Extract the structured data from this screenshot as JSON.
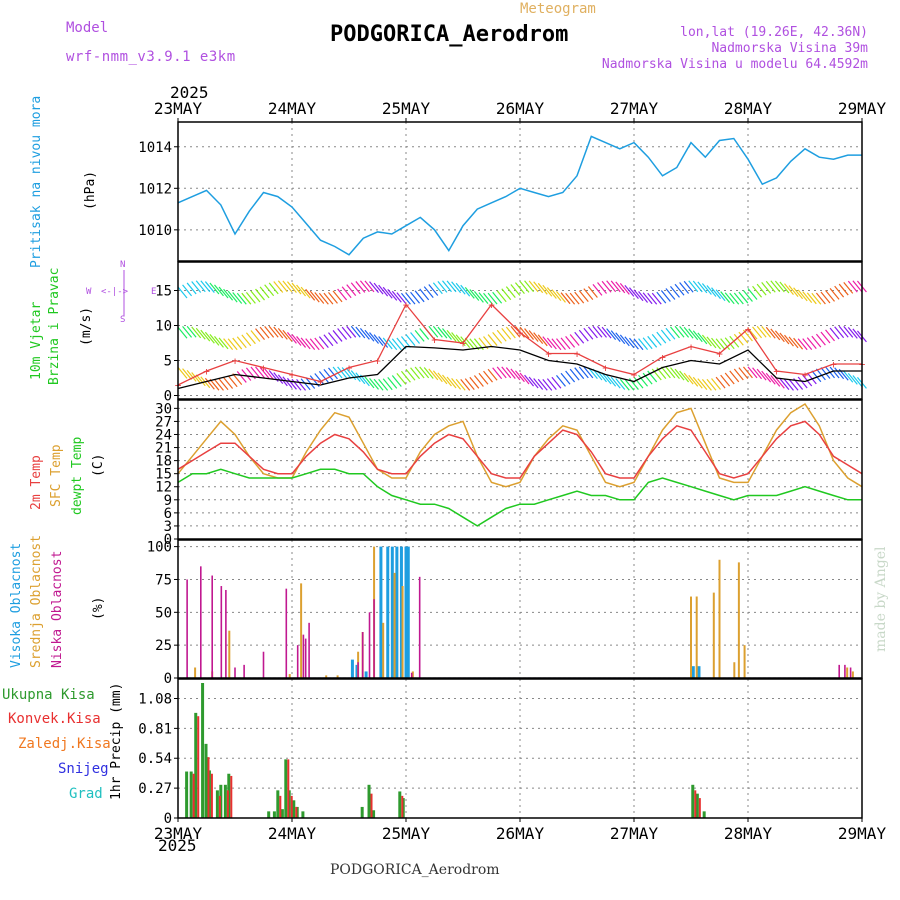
{
  "header": {
    "model_label": "Model",
    "model_name": "wrf-nmm_v3.9.1 e3km",
    "meteogram": "Meteogram",
    "station": "PODGORICA_Aerodrom",
    "lonlat": "lon,lat (19.26E, 42.36N)",
    "elevation": "Nadmorska Visina 39m",
    "elevation_model": "Nadmorska Visina u modelu 64.4592m",
    "year": "2025",
    "footer_station": "PODGORICA_Aerodrom",
    "credit": "made by Angel"
  },
  "colors": {
    "frame": "#000000",
    "grid": "#888888",
    "pressure": "#1e9ee0",
    "t2m": "#e84040",
    "tsfc": "#dca030",
    "dewpt": "#20c820",
    "cloud_high": "#1e9ee0",
    "cloud_mid": "#dca030",
    "cloud_low": "#c01890",
    "precip_total": "#2e9a2e",
    "precip_conv": "#e83030",
    "precip_strat": "#f07820",
    "snow": "#3030e0",
    "hail": "#20c0c0",
    "wind_speed": "#000000",
    "wind_gust": "#e84040",
    "purple_text": "#b050e0",
    "orange_text": "#e0b060"
  },
  "chart_data": [
    {
      "type": "line",
      "id": "pressure",
      "ylabel": "Pritisak na nivou mora",
      "units": "(hPa)",
      "ylim": [
        1008.5,
        1015
      ],
      "yticks": [
        1010,
        1012,
        1014
      ],
      "x_days": [
        0,
        0.125,
        0.25,
        0.375,
        0.5,
        0.625,
        0.75,
        0.875,
        1,
        1.125,
        1.25,
        1.375,
        1.5,
        1.625,
        1.75,
        1.875,
        2,
        2.125,
        2.25,
        2.375,
        2.5,
        2.625,
        2.75,
        2.875,
        3,
        3.125,
        3.25,
        3.375,
        3.5,
        3.625,
        3.75,
        3.875,
        4,
        4.125,
        4.25,
        4.375,
        4.5,
        4.625,
        4.75,
        4.875,
        5,
        5.125,
        5.25,
        5.375,
        5.5,
        5.625,
        5.75,
        5.875,
        6
      ],
      "values": [
        1011.3,
        1011.6,
        1011.9,
        1011.2,
        1009.8,
        1010.9,
        1011.8,
        1011.6,
        1011.1,
        1010.3,
        1009.5,
        1009.2,
        1008.8,
        1009.6,
        1009.9,
        1009.8,
        1010.2,
        1010.6,
        1010.0,
        1009.0,
        1010.2,
        1011.0,
        1011.3,
        1011.6,
        1012.0,
        1011.8,
        1011.6,
        1011.8,
        1012.6,
        1014.5,
        1014.2,
        1013.9,
        1014.2,
        1013.5,
        1012.6,
        1013.0,
        1014.2,
        1013.5,
        1014.3,
        1014.4,
        1013.4,
        1012.2,
        1012.5,
        1013.3,
        1013.9,
        1013.5,
        1013.4,
        1013.6,
        1013.6
      ]
    },
    {
      "type": "line",
      "id": "wind",
      "ylabel": "10m Vjetar",
      "ylabel2": "Brzina i Pravac",
      "units": "(m/s)",
      "compass": {
        "n": "N",
        "e": "E",
        "w": "W",
        "s": "S"
      },
      "ylim": [
        -0.5,
        18.5
      ],
      "yticks": [
        0,
        5,
        10,
        15
      ],
      "x_days": [
        0,
        0.25,
        0.5,
        0.75,
        1,
        1.25,
        1.5,
        1.75,
        2,
        2.25,
        2.5,
        2.75,
        3,
        3.25,
        3.5,
        3.75,
        4,
        4.25,
        4.5,
        4.75,
        5,
        5.25,
        5.5,
        5.75,
        6
      ],
      "speed": [
        1,
        2,
        3,
        2.5,
        2,
        1.5,
        2.5,
        3,
        7,
        6.8,
        6.5,
        7,
        6.5,
        5,
        4.5,
        3,
        2,
        4,
        5,
        4.5,
        6.5,
        2.5,
        2,
        3.5,
        3.5
      ],
      "gust": [
        1.5,
        3.5,
        5,
        4,
        3,
        2,
        4,
        5,
        13,
        8,
        7.5,
        13,
        9,
        6,
        6,
        4,
        3,
        5.5,
        7,
        6,
        9.5,
        3.5,
        3,
        4.5,
        4.5
      ]
    },
    {
      "type": "line",
      "id": "temperature",
      "ylabel": "2m Temp",
      "ylabel2": "SFC Temp",
      "ylabel3": "dewpt Temp",
      "units": "(C)",
      "ylim": [
        0,
        31
      ],
      "yticks": [
        0,
        3,
        6,
        9,
        12,
        15,
        18,
        21,
        24,
        27,
        30
      ],
      "x_days": [
        0,
        0.125,
        0.25,
        0.375,
        0.5,
        0.625,
        0.75,
        0.875,
        1,
        1.125,
        1.25,
        1.375,
        1.5,
        1.625,
        1.75,
        1.875,
        2,
        2.125,
        2.25,
        2.375,
        2.5,
        2.625,
        2.75,
        2.875,
        3,
        3.125,
        3.25,
        3.375,
        3.5,
        3.625,
        3.75,
        3.875,
        4,
        4.125,
        4.25,
        4.375,
        4.5,
        4.625,
        4.75,
        4.875,
        5,
        5.125,
        5.25,
        5.375,
        5.5,
        5.625,
        5.75,
        5.875,
        6
      ],
      "t2m": [
        16,
        18,
        20,
        22,
        22,
        19,
        16,
        15,
        15,
        19,
        22,
        24,
        23,
        20,
        16,
        15,
        15,
        19,
        22,
        24,
        23,
        19,
        15,
        14,
        14,
        19,
        22,
        25,
        24,
        20,
        15,
        14,
        14,
        19,
        23,
        26,
        25,
        20,
        15,
        14,
        15,
        19,
        23,
        26,
        27,
        24,
        19,
        17,
        15
      ],
      "tsfc": [
        15,
        19,
        23,
        27,
        24,
        19,
        15,
        14,
        14,
        20,
        25,
        29,
        28,
        22,
        16,
        14,
        14,
        20,
        24,
        26,
        27,
        19,
        13,
        12,
        13,
        19,
        23,
        26,
        25,
        19,
        13,
        12,
        13,
        19,
        25,
        29,
        30,
        22,
        14,
        13,
        13,
        19,
        25,
        29,
        31,
        26,
        18,
        14,
        12
      ],
      "dewpt": [
        13,
        15,
        15,
        16,
        15,
        14,
        14,
        14,
        14,
        15,
        16,
        16,
        15,
        15,
        12,
        10,
        9,
        8,
        8,
        7,
        5,
        3,
        5,
        7,
        8,
        8,
        9,
        10,
        11,
        10,
        10,
        9,
        9,
        13,
        14,
        13,
        12,
        11,
        10,
        9,
        10,
        10,
        10,
        11,
        12,
        11,
        10,
        9,
        9
      ]
    },
    {
      "type": "bar",
      "id": "clouds",
      "ylabel": "Visoka Oblacnost",
      "ylabel2": "Srednja Oblacnost",
      "ylabel3": "Niska Oblacnost",
      "units": "(%)",
      "ylim": [
        0,
        102
      ],
      "yticks": [
        0,
        25,
        50,
        75,
        100
      ],
      "low": [
        [
          0.08,
          75
        ],
        [
          0.2,
          85
        ],
        [
          0.3,
          78
        ],
        [
          0.38,
          70
        ],
        [
          0.42,
          67
        ],
        [
          0.5,
          8
        ],
        [
          0.58,
          10
        ],
        [
          0.75,
          20
        ],
        [
          0.95,
          68
        ],
        [
          1.05,
          25
        ],
        [
          1.1,
          33
        ],
        [
          1.12,
          30
        ],
        [
          1.15,
          42
        ],
        [
          1.58,
          12
        ],
        [
          1.62,
          35
        ],
        [
          1.68,
          50
        ],
        [
          1.72,
          60
        ],
        [
          2.05,
          4
        ],
        [
          2.12,
          77
        ],
        [
          5.8,
          10
        ],
        [
          5.85,
          10
        ],
        [
          5.9,
          8
        ]
      ],
      "mid": [
        [
          0.15,
          8
        ],
        [
          0.3,
          5
        ],
        [
          0.45,
          36
        ],
        [
          0.98,
          3
        ],
        [
          1.08,
          72
        ],
        [
          1.3,
          2
        ],
        [
          1.4,
          2
        ],
        [
          1.58,
          20
        ],
        [
          1.62,
          35
        ],
        [
          1.72,
          100
        ],
        [
          1.8,
          42
        ],
        [
          1.9,
          80
        ],
        [
          1.97,
          70
        ],
        [
          2.06,
          5
        ],
        [
          4.5,
          62
        ],
        [
          4.55,
          62
        ],
        [
          4.7,
          65
        ],
        [
          4.75,
          90
        ],
        [
          4.88,
          12
        ],
        [
          4.92,
          88
        ],
        [
          4.97,
          25
        ],
        [
          5.87,
          8
        ],
        [
          5.92,
          5
        ]
      ],
      "high": [
        [
          1.53,
          14
        ],
        [
          1.57,
          10
        ],
        [
          1.65,
          5
        ],
        [
          1.78,
          100
        ],
        [
          1.84,
          100
        ],
        [
          1.88,
          100
        ],
        [
          1.92,
          100
        ],
        [
          1.96,
          100
        ],
        [
          2.0,
          100
        ],
        [
          2.02,
          100
        ],
        [
          4.52,
          9
        ],
        [
          4.57,
          9
        ]
      ]
    },
    {
      "type": "bar",
      "id": "precipitation",
      "legend": [
        "Ukupna Kisa",
        "Konvek.Kisa",
        "Zaledj.Kisa",
        "Snijeg",
        "Grad"
      ],
      "ylabel": "1hr Precip (mm)",
      "ylim": [
        0,
        1.22
      ],
      "yticks": [
        0,
        0.27,
        0.54,
        0.81,
        1.08
      ],
      "total": [
        [
          0.08,
          0.42
        ],
        [
          0.12,
          0.42
        ],
        [
          0.16,
          0.95
        ],
        [
          0.22,
          1.22
        ],
        [
          0.25,
          0.67
        ],
        [
          0.28,
          0.43
        ],
        [
          0.35,
          0.25
        ],
        [
          0.38,
          0.3
        ],
        [
          0.42,
          0.3
        ],
        [
          0.45,
          0.4
        ],
        [
          0.8,
          0.06
        ],
        [
          0.85,
          0.06
        ],
        [
          0.88,
          0.25
        ],
        [
          0.92,
          0.08
        ],
        [
          0.95,
          0.53
        ],
        [
          0.98,
          0.25
        ],
        [
          1.02,
          0.16
        ],
        [
          1.05,
          0.1
        ],
        [
          1.1,
          0.06
        ],
        [
          1.62,
          0.1
        ],
        [
          1.68,
          0.3
        ],
        [
          1.72,
          0.07
        ],
        [
          1.95,
          0.24
        ],
        [
          1.98,
          0.18
        ],
        [
          4.52,
          0.3
        ],
        [
          4.56,
          0.22
        ],
        [
          4.62,
          0.06
        ]
      ],
      "convective": [
        [
          0.12,
          0.4
        ],
        [
          0.16,
          0.92
        ],
        [
          0.25,
          0.55
        ],
        [
          0.28,
          0.4
        ],
        [
          0.35,
          0.2
        ],
        [
          0.42,
          0.25
        ],
        [
          0.45,
          0.38
        ],
        [
          0.88,
          0.2
        ],
        [
          0.95,
          0.53
        ],
        [
          0.98,
          0.2
        ],
        [
          1.02,
          0.1
        ],
        [
          1.68,
          0.22
        ],
        [
          1.95,
          0.2
        ],
        [
          4.52,
          0.25
        ],
        [
          4.56,
          0.18
        ]
      ],
      "stratiform": []
    }
  ],
  "xaxis": {
    "days": [
      "23MAY",
      "24MAY",
      "25MAY",
      "26MAY",
      "27MAY",
      "28MAY",
      "29MAY"
    ]
  }
}
